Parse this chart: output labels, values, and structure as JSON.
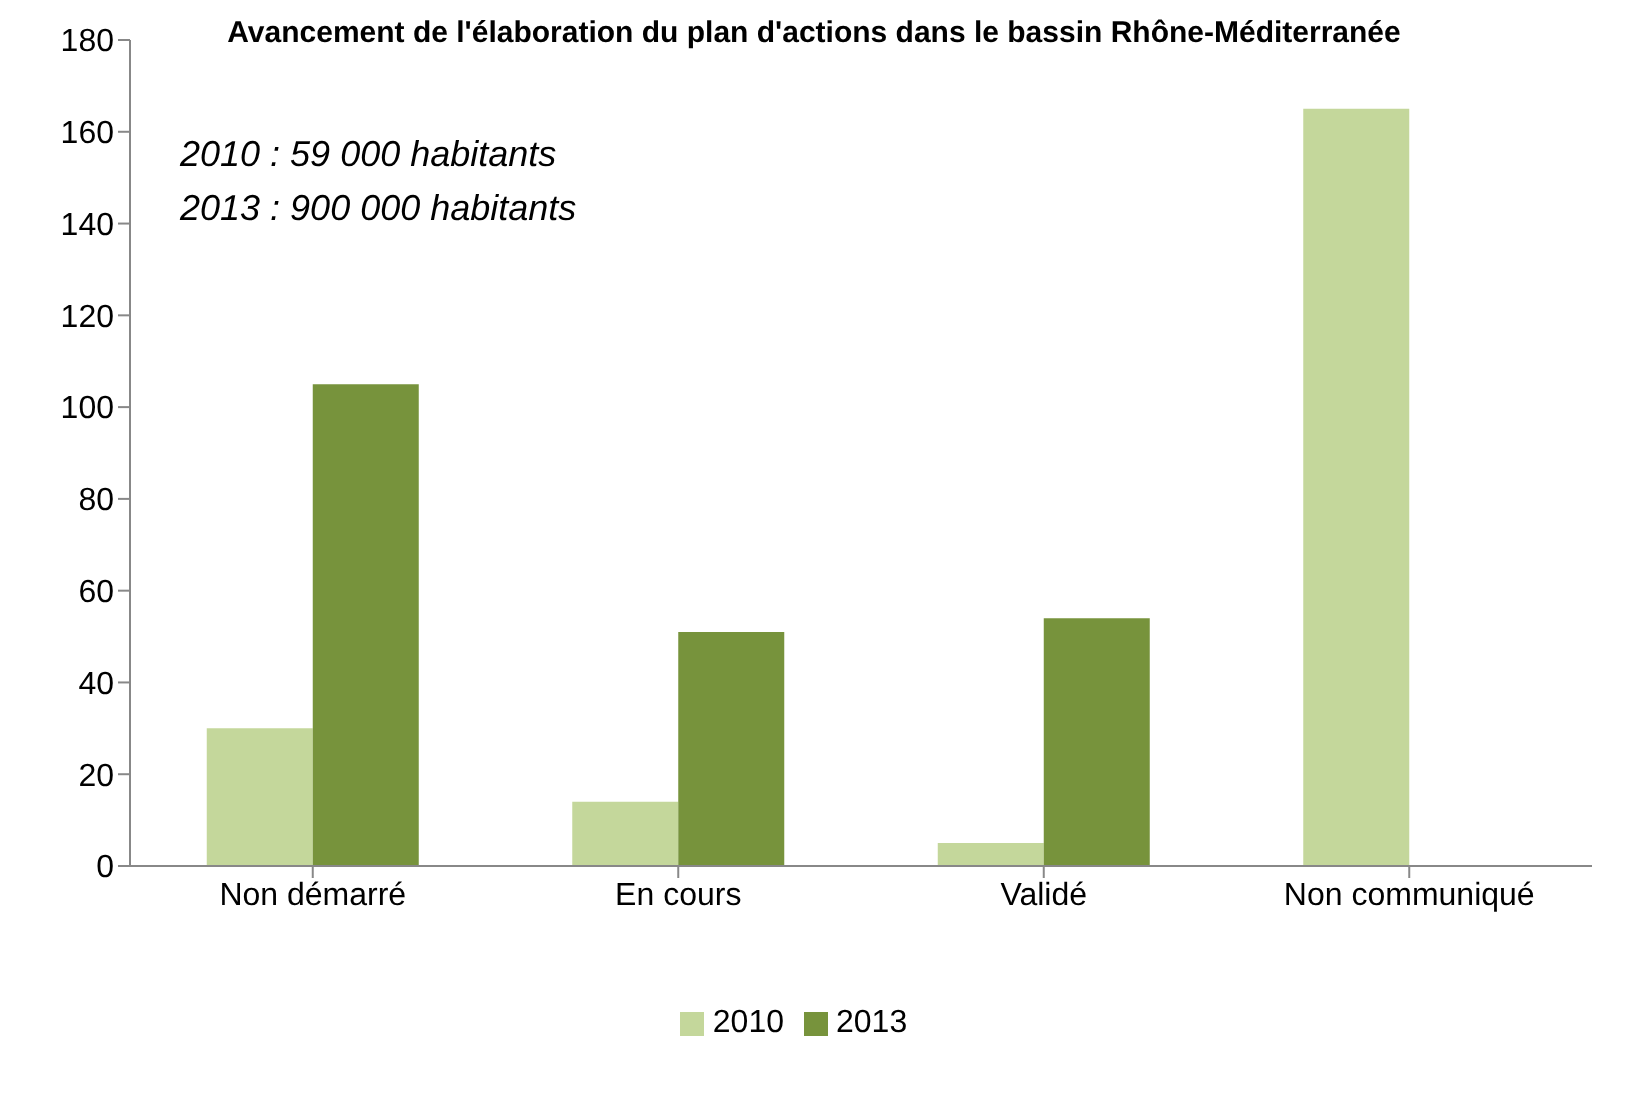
{
  "chart_data": {
    "type": "bar",
    "title": "Avancement de l'élaboration du plan d'actions dans le bassin Rhône-Méditerranée",
    "categories": [
      "Non démarré",
      "En cours",
      "Validé",
      "Non communiqué"
    ],
    "series": [
      {
        "name": "2010",
        "color": "#c4d79b",
        "values": [
          30,
          14,
          5,
          165
        ]
      },
      {
        "name": "2013",
        "color": "#77933c",
        "values": [
          105,
          51,
          54,
          null
        ]
      }
    ],
    "ylim": [
      0,
      180
    ],
    "yticks": [
      0,
      20,
      40,
      60,
      80,
      100,
      120,
      140,
      160,
      180
    ],
    "grid": false,
    "legend": "bottom",
    "annotations": [
      "2010 : 59 000 habitants",
      "2013 : 900 000 habitants"
    ]
  }
}
